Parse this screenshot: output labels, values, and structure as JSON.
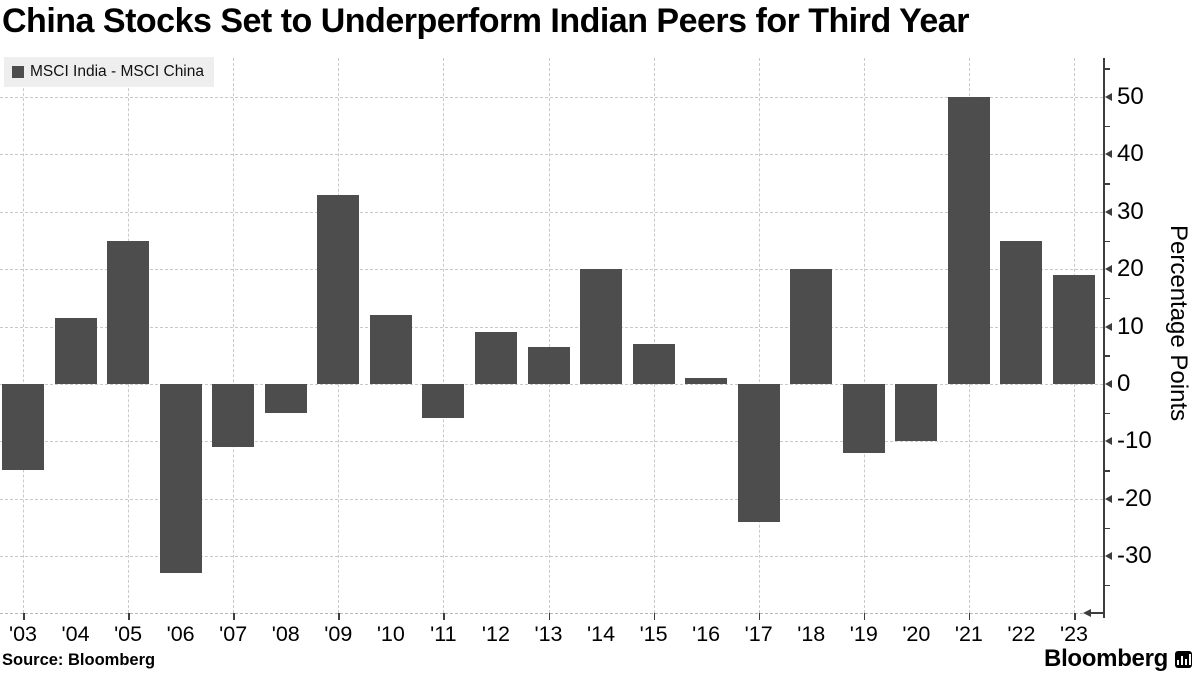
{
  "title": "China Stocks Set to Underperform Indian Peers for Third Year",
  "legend": {
    "label": "MSCI India - MSCI China",
    "swatch_color": "#4d4d4d"
  },
  "footer": {
    "source": "Source: Bloomberg",
    "brand": "Bloomberg"
  },
  "chart_data": {
    "type": "bar",
    "title": "China Stocks Set to Underperform Indian Peers for Third Year",
    "series_name": "MSCI India - MSCI China",
    "categories": [
      "'03",
      "'04",
      "'05",
      "'06",
      "'07",
      "'08",
      "'09",
      "'10",
      "'11",
      "'12",
      "'13",
      "'14",
      "'15",
      "'16",
      "'17",
      "'18",
      "'19",
      "'20",
      "'21",
      "'22",
      "'23"
    ],
    "values": [
      -15,
      11.5,
      25,
      -33,
      -11,
      -5,
      33,
      12,
      -6,
      9,
      6.5,
      20,
      7,
      1,
      -24,
      20,
      -12,
      -10,
      50,
      25,
      19
    ],
    "xlabel": "",
    "ylabel": "Percentage Points",
    "yticks": [
      50,
      40,
      30,
      20,
      10,
      0,
      -10,
      -20,
      -30
    ],
    "minor_yticks": [
      55,
      45,
      35,
      25,
      15,
      5,
      -5,
      -15,
      -25,
      -35
    ],
    "ylim": [
      -39,
      57
    ],
    "grid": "dashed",
    "vgrid_categories": [
      "'03",
      "'05",
      "'07",
      "'09",
      "'11",
      "'13",
      "'15",
      "'17",
      "'19",
      "'21",
      "'23"
    ],
    "legend_position": "top-left",
    "bar_color": "#4d4d4d",
    "axis_side": "right"
  }
}
